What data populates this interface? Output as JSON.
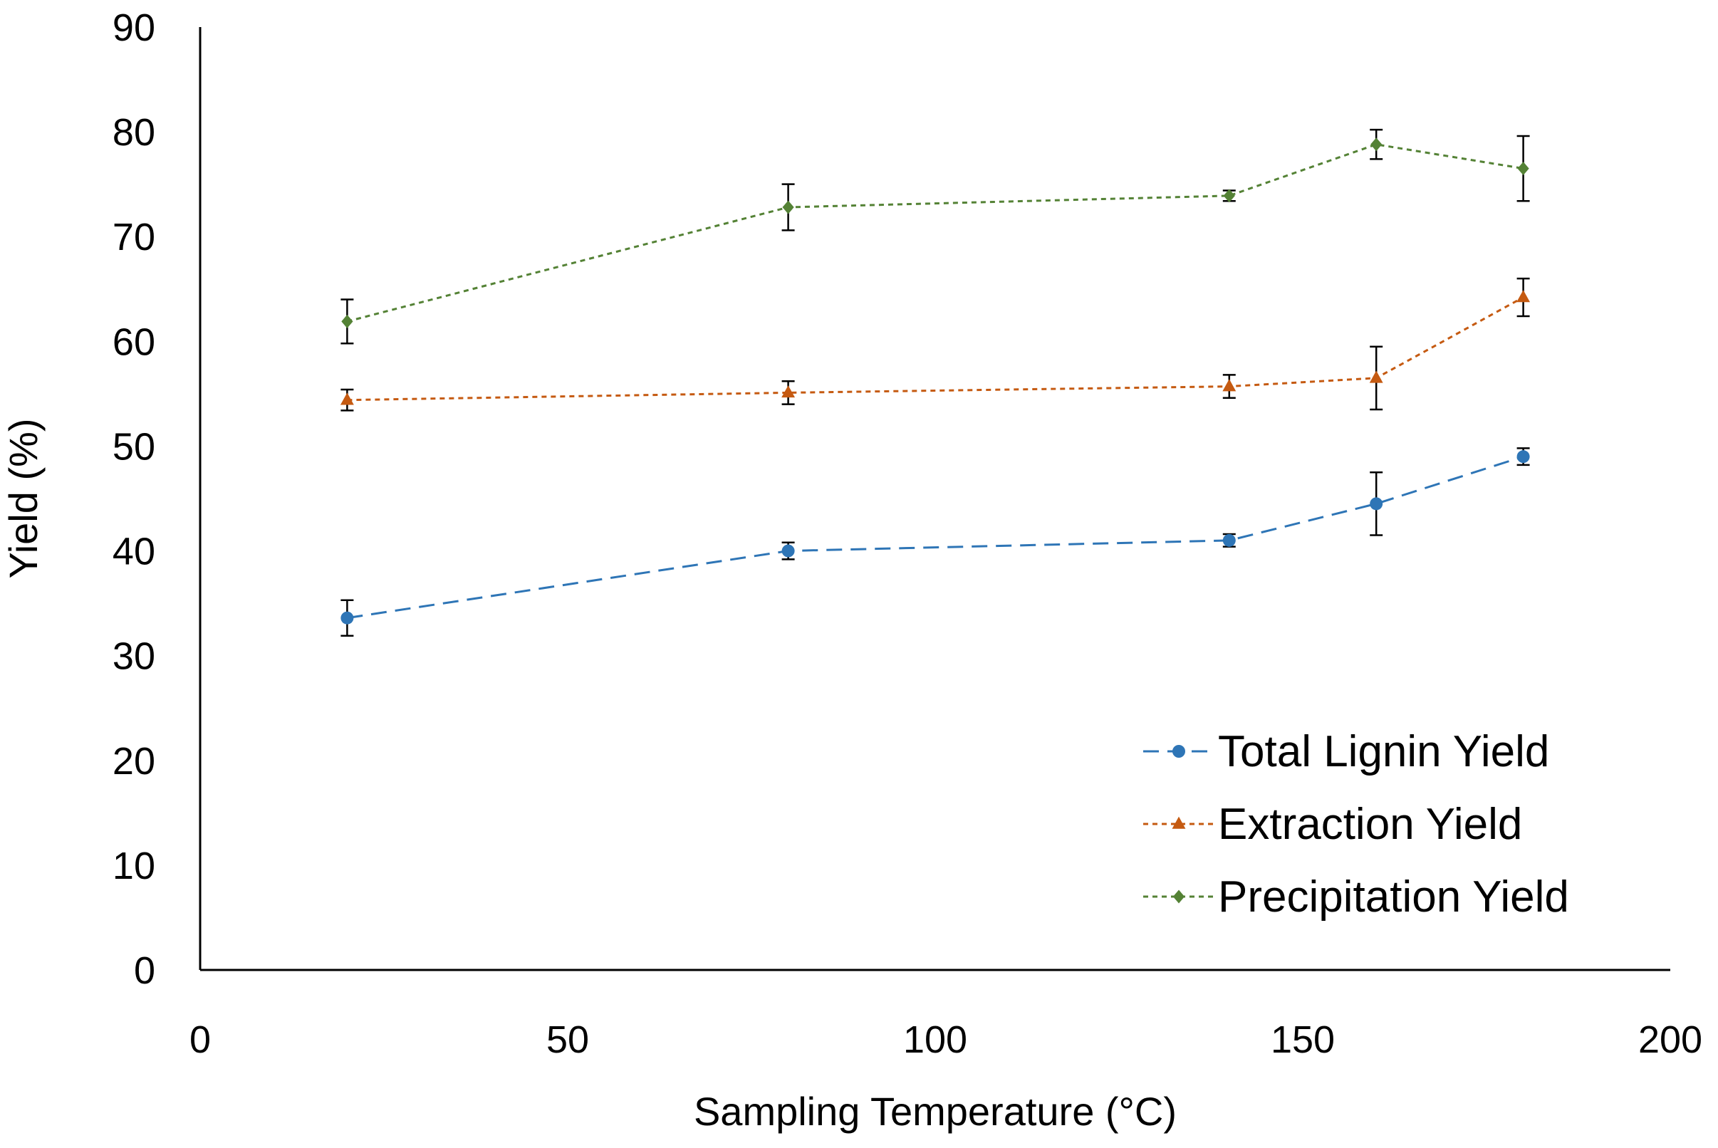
{
  "chart_data": {
    "type": "line",
    "title": "",
    "xlabel": "Sampling Temperature (°C)",
    "ylabel": "Yield (%)",
    "xlim": [
      0,
      200
    ],
    "ylim": [
      0,
      90
    ],
    "xticks": [
      0,
      50,
      100,
      150,
      200
    ],
    "yticks": [
      0,
      10,
      20,
      30,
      40,
      50,
      60,
      70,
      80,
      90
    ],
    "grid": false,
    "legend_position": "bottom-right",
    "x": [
      20,
      80,
      140,
      160,
      180
    ],
    "series": [
      {
        "name": "Total Lignin Yield",
        "color": "#2E75B6",
        "marker": "circle",
        "line_style": "dashed",
        "values": [
          33.6,
          40.0,
          41.0,
          44.5,
          49.0
        ],
        "errors": [
          1.7,
          0.8,
          0.6,
          3.0,
          0.8
        ]
      },
      {
        "name": "Extraction Yield",
        "color": "#C55A11",
        "marker": "triangle",
        "line_style": "dotted",
        "values": [
          54.4,
          55.1,
          55.7,
          56.5,
          64.2
        ],
        "errors": [
          1.0,
          1.1,
          1.1,
          3.0,
          1.8
        ]
      },
      {
        "name": "Precipitation Yield",
        "color": "#548235",
        "marker": "diamond",
        "line_style": "dotted",
        "values": [
          61.9,
          72.8,
          73.9,
          78.8,
          76.5
        ],
        "errors": [
          2.1,
          2.2,
          0.5,
          1.4,
          3.1
        ]
      }
    ]
  }
}
